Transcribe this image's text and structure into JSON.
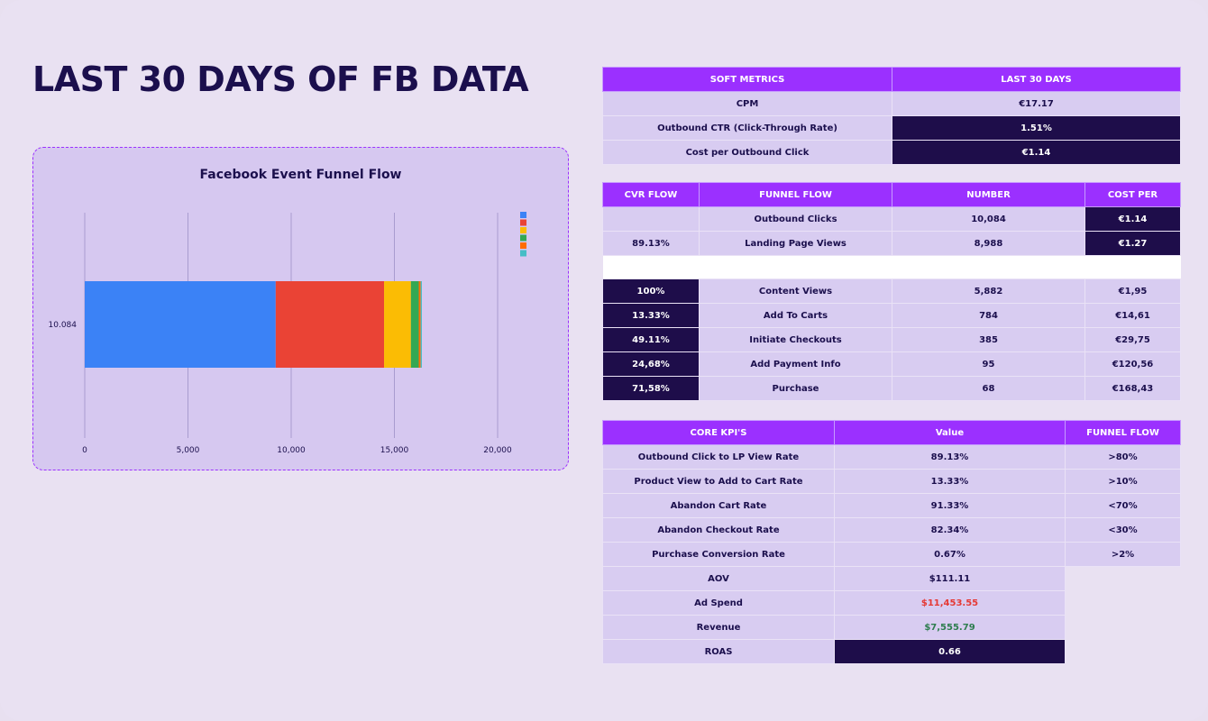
{
  "page": {
    "title": "LAST 30 DAYS OF FB DATA"
  },
  "colors": {
    "accent": "#9b30ff",
    "dark": "#1e0d4a",
    "cell": "#d8ccf1",
    "negative": "#e53935",
    "positive": "#2e7d4f"
  },
  "chart_data": {
    "type": "bar",
    "orientation": "horizontal",
    "stacked": true,
    "title": "Facebook Event Funnel Flow",
    "categories": [
      "10.084"
    ],
    "series": [
      {
        "color": "#3b82f6",
        "values": [
          9250
        ]
      },
      {
        "color": "#ea4335",
        "values": [
          5250
        ]
      },
      {
        "color": "#fbbc04",
        "values": [
          1300
        ]
      },
      {
        "color": "#34a853",
        "values": [
          380
        ]
      },
      {
        "color": "#ff6d01",
        "values": [
          90
        ]
      },
      {
        "color": "#46bdc6",
        "values": [
          60
        ]
      }
    ],
    "xlim": [
      0,
      20000
    ],
    "xticks": [
      "0",
      "5,000",
      "10,000",
      "15,000",
      "20,000"
    ],
    "grid": true,
    "legend": "top-right"
  },
  "soft_metrics": {
    "headers": [
      "SOFT METRICS",
      "LAST 30 DAYS"
    ],
    "rows": [
      {
        "label": "CPM",
        "value": "€17.17",
        "dark": false
      },
      {
        "label": "Outbound CTR (Click-Through Rate)",
        "value": "1.51%",
        "dark": true
      },
      {
        "label": "Cost per Outbound Click",
        "value": "€1.14",
        "dark": true
      }
    ]
  },
  "funnel": {
    "headers": [
      "CVR FLOW",
      "FUNNEL FLOW",
      "NUMBER",
      "COST PER"
    ],
    "rows_top": [
      {
        "cvr": "",
        "step": "Outbound Clicks",
        "number": "10,084",
        "cost": "€1.14"
      },
      {
        "cvr": "89.13%",
        "step": "Landing Page Views",
        "number": "8,988",
        "cost": "€1.27"
      }
    ],
    "rows_bottom": [
      {
        "cvr": "100%",
        "step": "Content Views",
        "number": "5,882",
        "cost": "€1,95"
      },
      {
        "cvr": "13.33%",
        "step": "Add To Carts",
        "number": "784",
        "cost": "€14,61"
      },
      {
        "cvr": "49.11%",
        "step": "Initiate Checkouts",
        "number": "385",
        "cost": "€29,75"
      },
      {
        "cvr": "24,68%",
        "step": "Add Payment Info",
        "number": "95",
        "cost": "€120,56"
      },
      {
        "cvr": "71,58%",
        "step": "Purchase",
        "number": "68",
        "cost": "€168,43"
      }
    ]
  },
  "kpis": {
    "headers": [
      "CORE KPI'S",
      "Value",
      "FUNNEL FLOW"
    ],
    "rows": [
      {
        "label": "Outbound Click to LP View Rate",
        "value": "89.13%",
        "target": ">80%"
      },
      {
        "label": "Product View to Add to Cart Rate",
        "value": "13.33%",
        "target": ">10%"
      },
      {
        "label": "Abandon Cart Rate",
        "value": "91.33%",
        "target": "<70%"
      },
      {
        "label": "Abandon Checkout Rate",
        "value": "82.34%",
        "target": "<30%"
      },
      {
        "label": "Purchase Conversion Rate",
        "value": "0.67%",
        "target": ">2%"
      },
      {
        "label": "AOV",
        "value": "$111.11",
        "target": ""
      },
      {
        "label": "Ad Spend",
        "value": "$11,453.55",
        "target": "",
        "style": "red"
      },
      {
        "label": "Revenue",
        "value": "$7,555.79",
        "target": "",
        "style": "green"
      },
      {
        "label": "ROAS",
        "value": "0.66",
        "target": "",
        "style": "dark"
      }
    ]
  }
}
